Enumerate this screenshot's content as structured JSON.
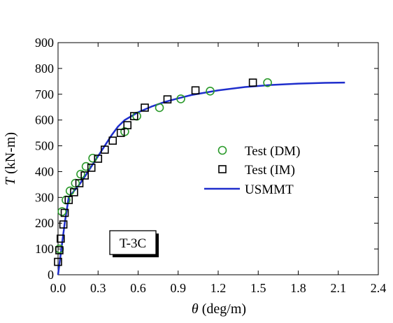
{
  "chart_data": {
    "type": "scatter",
    "xlabel_symbol": "θ",
    "xlabel_unit": " (deg/m)",
    "ylabel_symbol": "T",
    "ylabel_unit": " (kN-m)",
    "xlim": [
      0,
      2.4
    ],
    "ylim": [
      0,
      900
    ],
    "xticks": [
      0.0,
      0.3,
      0.6,
      0.9,
      1.2,
      1.5,
      1.8,
      2.1,
      2.4
    ],
    "xtick_labels": [
      "0.0",
      "0.3",
      "0.6",
      "0.9",
      "1.2",
      "1.5",
      "1.8",
      "2.1",
      "2.4"
    ],
    "yticks": [
      0,
      100,
      200,
      300,
      400,
      500,
      600,
      700,
      800,
      900
    ],
    "ytick_labels": [
      "0",
      "100",
      "200",
      "300",
      "400",
      "500",
      "600",
      "700",
      "800",
      "900"
    ],
    "grid": false,
    "legend_position": "center-right",
    "annotation": "T-3C",
    "series": [
      {
        "name": "Test (DM)",
        "marker": "circle",
        "color": "#2a9a2a",
        "x": [
          0.01,
          0.03,
          0.06,
          0.09,
          0.13,
          0.17,
          0.21,
          0.26,
          0.5,
          0.59,
          0.76,
          0.92,
          1.14,
          1.57
        ],
        "y": [
          100,
          245,
          290,
          325,
          355,
          390,
          420,
          452,
          555,
          615,
          648,
          682,
          712,
          745
        ]
      },
      {
        "name": "Test (IM)",
        "marker": "square",
        "color": "#000000",
        "x": [
          0.0,
          0.01,
          0.02,
          0.04,
          0.05,
          0.08,
          0.12,
          0.16,
          0.2,
          0.25,
          0.3,
          0.35,
          0.41,
          0.47,
          0.52,
          0.57,
          0.65,
          0.82,
          1.03,
          1.46
        ],
        "y": [
          50,
          95,
          140,
          195,
          240,
          290,
          320,
          355,
          385,
          415,
          450,
          485,
          520,
          550,
          580,
          615,
          648,
          680,
          715,
          745
        ]
      },
      {
        "name": "USMMT",
        "marker": "line",
        "color": "#1f2ecc",
        "x": [
          0.0,
          0.02,
          0.05,
          0.08,
          0.12,
          0.16,
          0.2,
          0.25,
          0.3,
          0.35,
          0.4,
          0.45,
          0.5,
          0.55,
          0.6,
          0.7,
          0.8,
          0.9,
          1.0,
          1.2,
          1.4,
          1.6,
          1.8,
          2.0,
          2.15
        ],
        "y": [
          0,
          80,
          200,
          300,
          325,
          350,
          380,
          420,
          460,
          500,
          540,
          575,
          600,
          615,
          630,
          652,
          670,
          684,
          697,
          715,
          728,
          736,
          741,
          744,
          745
        ]
      }
    ]
  }
}
